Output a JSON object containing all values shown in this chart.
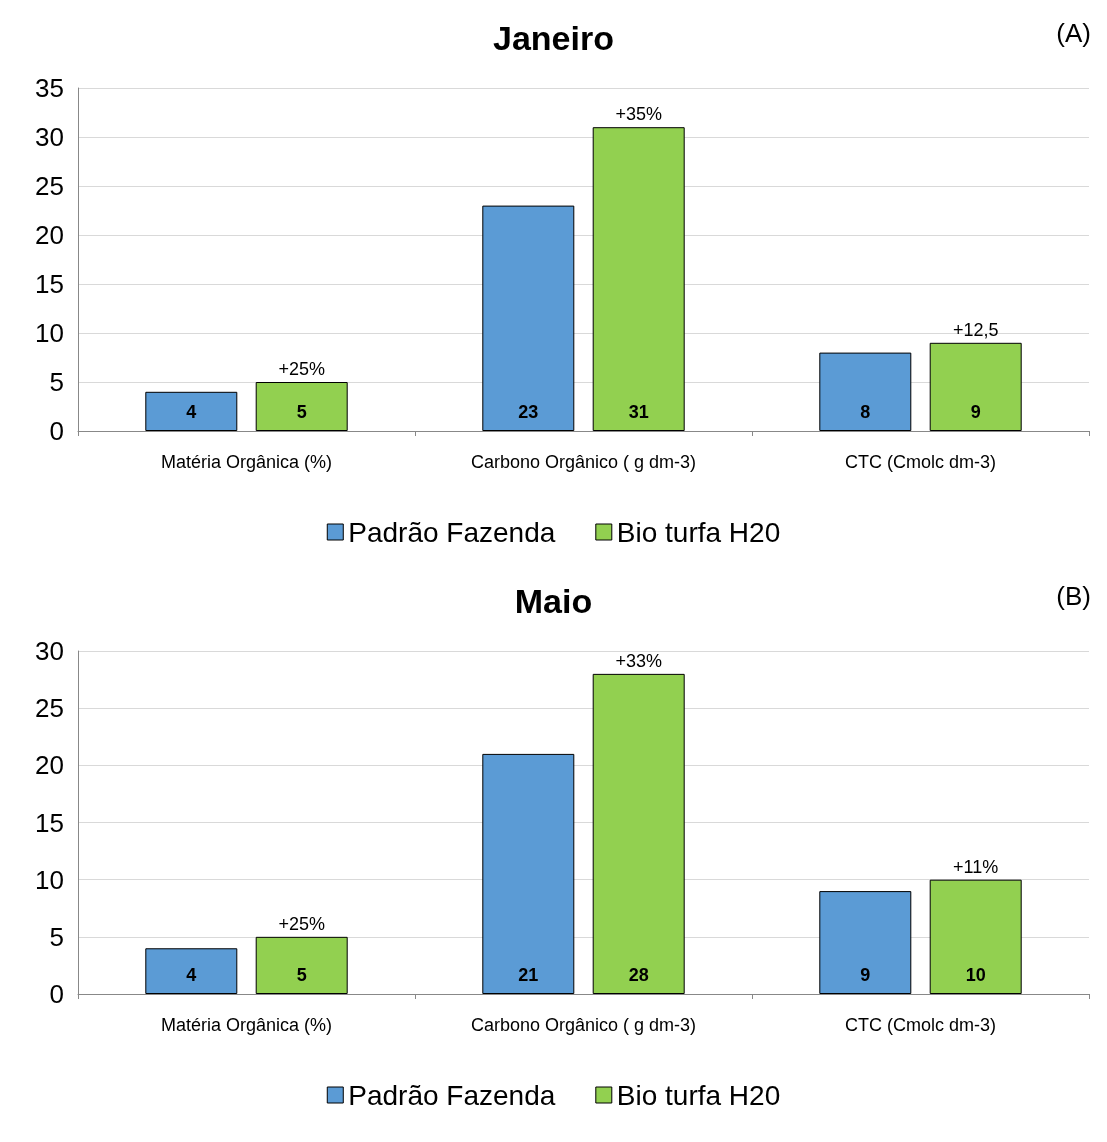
{
  "chart_data": [
    {
      "type": "bar",
      "title": "Janeiro",
      "categories": [
        "Matéria Orgânica (%)",
        "Carbono Orgânico ( g dm-3)",
        "CTC (Cmolc dm-3)"
      ],
      "series": [
        {
          "name": "Padrão Fazenda",
          "color": "#5b9bd5",
          "values": [
            4,
            23,
            8
          ]
        },
        {
          "name": "Bio turfa H20",
          "color": "#92d050",
          "values": [
            5,
            31,
            9
          ]
        }
      ],
      "ylim": [
        0,
        35
      ],
      "yticks": [
        0,
        5,
        10,
        15,
        20,
        25,
        30,
        35
      ],
      "grid": "y",
      "legend": "bottom",
      "data_labels": true,
      "annotations": [
        "(A)",
        "+25%",
        "+35%",
        "+12,5"
      ]
    },
    {
      "type": "bar",
      "title": "Maio",
      "categories": [
        "Matéria Orgânica (%)",
        "Carbono Orgânico ( g dm-3)",
        "CTC (Cmolc dm-3)"
      ],
      "series": [
        {
          "name": "Padrão Fazenda",
          "color": "#5b9bd5",
          "values": [
            4,
            21,
            9
          ]
        },
        {
          "name": "Bio turfa H20",
          "color": "#92d050",
          "values": [
            5,
            28,
            10
          ]
        }
      ],
      "ylim": [
        0,
        30
      ],
      "yticks": [
        0,
        5,
        10,
        15,
        20,
        25,
        30
      ],
      "grid": "y",
      "legend": "bottom",
      "data_labels": true,
      "annotations": [
        "(B)",
        "+25%",
        "+33%",
        "+11%"
      ]
    }
  ]
}
